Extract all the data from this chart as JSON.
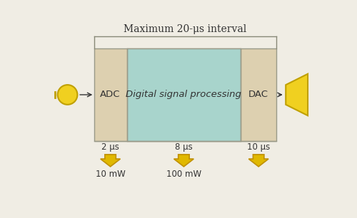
{
  "bg_color": "#f0ede4",
  "title": "Maximum 20-μs interval",
  "title_fontsize": 10,
  "adc_label": "ADC",
  "dsp_label": "Digital signal processing",
  "dac_label": "DAC",
  "adc_color": "#ddd0b0",
  "dsp_color": "#a8d4cc",
  "dac_color": "#ddd0b0",
  "outer_box_color": "#ddd0b0",
  "box_edge_color": "#999988",
  "time_labels": [
    "2 μs",
    "8 μs",
    "10 μs"
  ],
  "power_labels": [
    "10 mW",
    "100 mW",
    ""
  ],
  "arrow_color": "#e0b800",
  "arrow_edge_color": "#c09000",
  "text_color": "#333333",
  "label_fontsize": 9.5,
  "small_fontsize": 8.5,
  "mic_color": "#f0d020",
  "mic_edge": "#c0a000",
  "spk_color": "#f0d020",
  "spk_edge": "#c0a000",
  "line_color": "#888877"
}
